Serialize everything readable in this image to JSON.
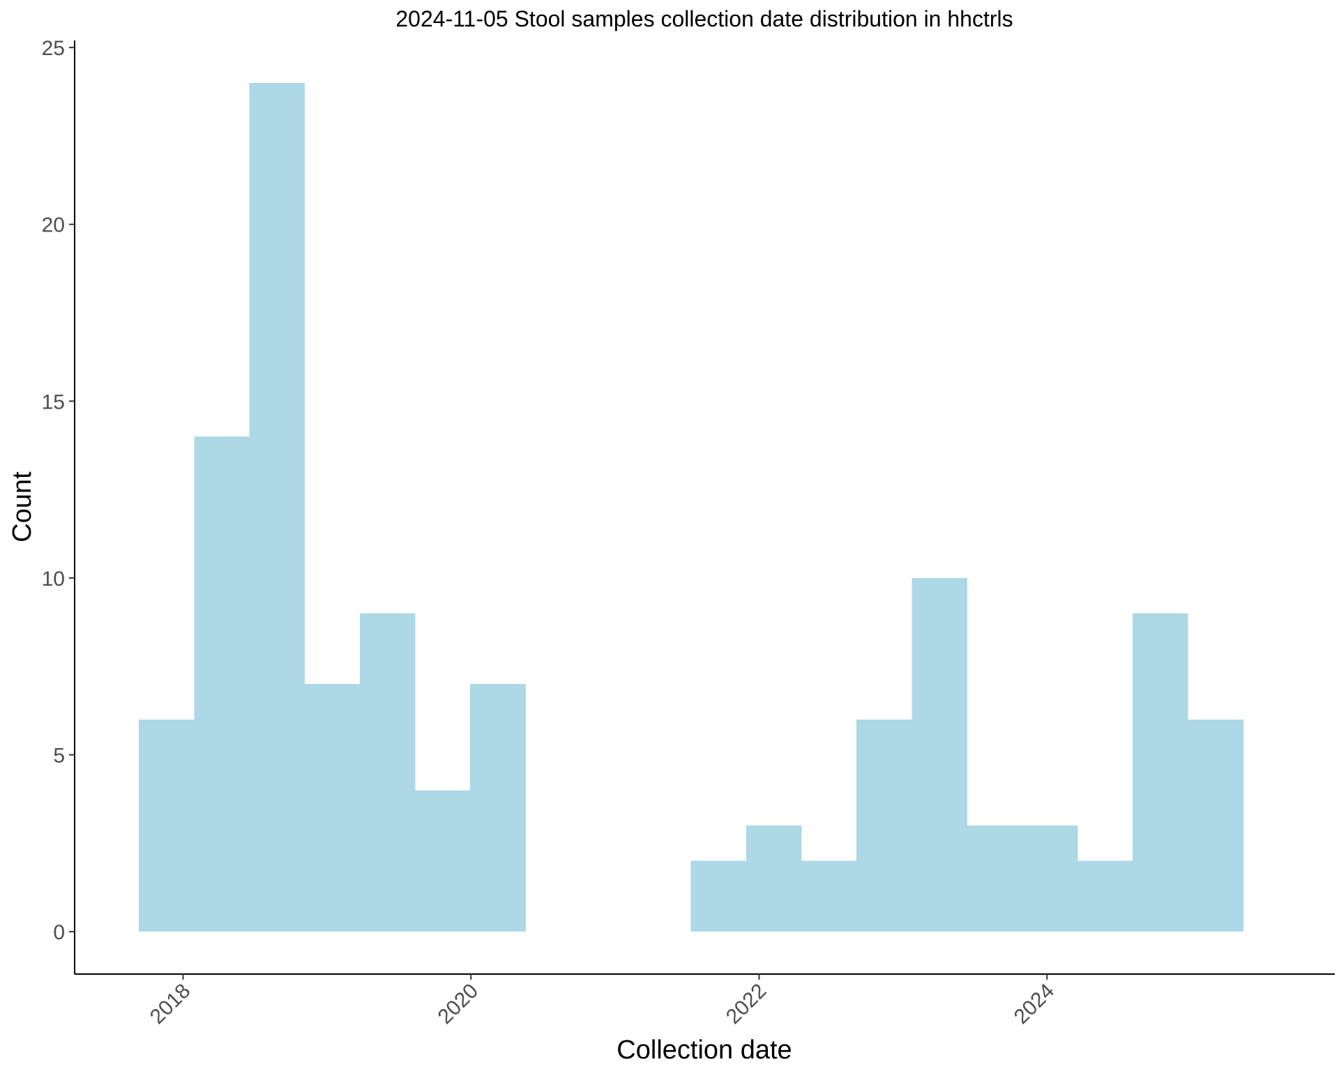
{
  "chart_data": {
    "type": "bar",
    "subtype": "histogram",
    "title": "2024-11-05 Stool samples collection date distribution in hhctrls",
    "xlabel": "Collection date",
    "ylabel": "Count",
    "x_ticks": [
      "2018",
      "2020",
      "2022",
      "2024"
    ],
    "y_ticks": [
      "0",
      "5",
      "10",
      "15",
      "20",
      "25"
    ],
    "bins": [
      {
        "start": "2017-09-11",
        "end": "2018-01-29",
        "count": 6
      },
      {
        "start": "2018-01-29",
        "end": "2018-06-18",
        "count": 14
      },
      {
        "start": "2018-06-18",
        "end": "2018-11-05",
        "count": 24
      },
      {
        "start": "2018-11-05",
        "end": "2019-03-25",
        "count": 7
      },
      {
        "start": "2019-03-25",
        "end": "2019-08-12",
        "count": 9
      },
      {
        "start": "2019-08-12",
        "end": "2019-12-30",
        "count": 4
      },
      {
        "start": "2019-12-30",
        "end": "2020-05-18",
        "count": 7
      },
      {
        "start": "2020-05-18",
        "end": "2020-10-05",
        "count": 0
      },
      {
        "start": "2020-10-05",
        "end": "2021-02-22",
        "count": 0
      },
      {
        "start": "2021-02-22",
        "end": "2021-07-12",
        "count": 0
      },
      {
        "start": "2021-07-12",
        "end": "2021-11-29",
        "count": 2
      },
      {
        "start": "2021-11-29",
        "end": "2022-04-18",
        "count": 3
      },
      {
        "start": "2022-04-18",
        "end": "2022-09-05",
        "count": 2
      },
      {
        "start": "2022-09-05",
        "end": "2023-01-23",
        "count": 6
      },
      {
        "start": "2023-01-23",
        "end": "2023-06-12",
        "count": 10
      },
      {
        "start": "2023-06-12",
        "end": "2023-10-30",
        "count": 3
      },
      {
        "start": "2023-10-30",
        "end": "2024-03-18",
        "count": 3
      },
      {
        "start": "2024-03-18",
        "end": "2024-08-05",
        "count": 2
      },
      {
        "start": "2024-08-05",
        "end": "2024-12-23",
        "count": 9
      },
      {
        "start": "2024-12-23",
        "end": "2025-05-12",
        "count": 6
      }
    ],
    "xlim": [
      "2017-04-01",
      "2025-12-31"
    ],
    "ylim": [
      -1.2,
      25.2
    ],
    "bar_color": "#add8e6",
    "grid": false,
    "legend": "none"
  }
}
